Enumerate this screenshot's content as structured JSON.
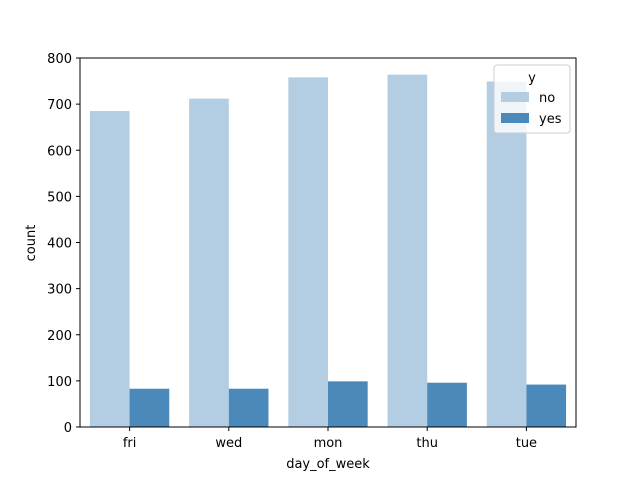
{
  "chart_data": {
    "type": "bar",
    "title": "",
    "xlabel": "day_of_week",
    "ylabel": "count",
    "categories": [
      "fri",
      "wed",
      "mon",
      "thu",
      "tue"
    ],
    "series": [
      {
        "name": "no",
        "values": [
          685,
          712,
          758,
          764,
          749
        ],
        "color": "#b3cde3"
      },
      {
        "name": "yes",
        "values": [
          83,
          83,
          99,
          96,
          92
        ],
        "color": "#4a89b9"
      }
    ],
    "ylim": [
      0,
      800
    ],
    "yticks": [
      0,
      100,
      200,
      300,
      400,
      500,
      600,
      700,
      800
    ],
    "grid": false,
    "legend": {
      "title": "y",
      "position": "top-right"
    }
  }
}
